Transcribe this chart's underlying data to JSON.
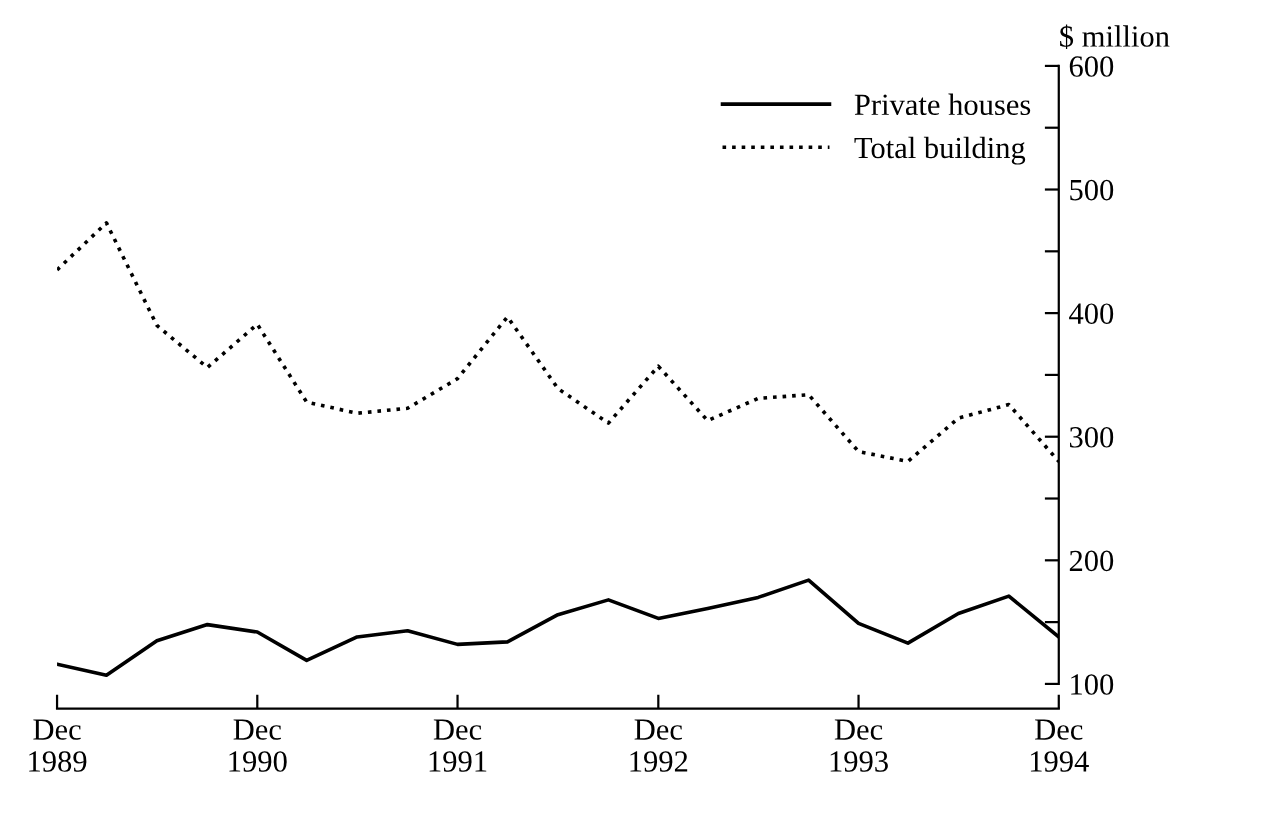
{
  "chart_data": {
    "type": "line",
    "ylabel": "$ million",
    "x": [
      "1989-12",
      "1990-03",
      "1990-06",
      "1990-09",
      "1990-12",
      "1991-03",
      "1991-06",
      "1991-09",
      "1991-12",
      "1992-03",
      "1992-06",
      "1992-09",
      "1992-12",
      "1993-03",
      "1993-06",
      "1993-09",
      "1993-12",
      "1994-03",
      "1994-06",
      "1994-09",
      "1994-12"
    ],
    "series": [
      {
        "name": "Private houses",
        "color": "#000000",
        "line_style": "solid",
        "values": [
          116,
          107,
          135,
          148,
          142,
          119,
          138,
          143,
          132,
          134,
          156,
          168,
          153,
          161,
          170,
          184,
          149,
          133,
          157,
          171,
          138
        ]
      },
      {
        "name": "Total building",
        "color": "#000000",
        "line_style": "dotted",
        "values": [
          435,
          473,
          390,
          356,
          391,
          328,
          319,
          323,
          347,
          397,
          339,
          311,
          357,
          313,
          331,
          334,
          288,
          280,
          315,
          326,
          280
        ]
      }
    ],
    "xlim": [
      "1989-12",
      "1994-12"
    ],
    "xticks": [
      {
        "value": "1989-12",
        "label": "Dec\n1989"
      },
      {
        "value": "1990-12",
        "label": "Dec\n1990"
      },
      {
        "value": "1991-12",
        "label": "Dec\n1991"
      },
      {
        "value": "1992-12",
        "label": "Dec\n1992"
      },
      {
        "value": "1993-12",
        "label": "Dec\n1993"
      },
      {
        "value": "1994-12",
        "label": "Dec\n1994"
      }
    ],
    "ylim": [
      80,
      600
    ],
    "yticks": [
      100,
      {
        "value": 150,
        "label": null
      },
      200,
      {
        "value": 250,
        "label": null
      },
      300,
      {
        "value": 350,
        "label": null
      },
      400,
      {
        "value": 450,
        "label": null
      },
      500,
      {
        "value": 550,
        "label": null
      },
      600
    ],
    "grid": false,
    "legend": "top right",
    "marker": "none"
  }
}
